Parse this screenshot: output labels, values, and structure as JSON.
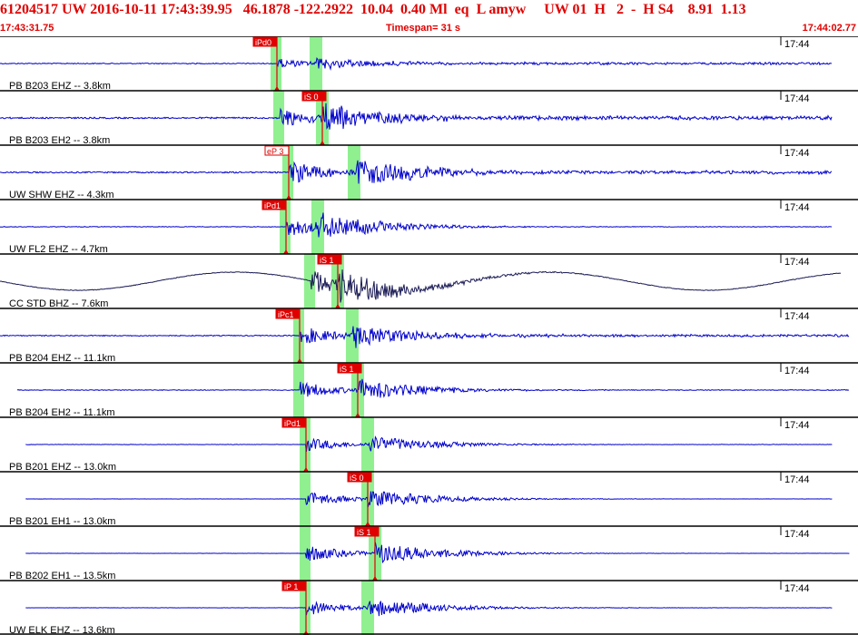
{
  "header": {
    "title_line": "61204517 UW 2016-10-11 17:43:39.95   46.1878 -122.2922  10.04  0.40 Ml  eq  L amyw     UW 01  H   2  -  H S4    8.91  1.13",
    "start_time": "17:43:31.75",
    "timespan": "Timespan=  31 s",
    "end_time": "17:44:02.77"
  },
  "colors": {
    "trace_blue": "#0000cc",
    "trace_dark": "#1a1a55",
    "pick_red": "#e00000",
    "header_red": "#e00000",
    "window_green": "#90f090",
    "panel_border": "#000000"
  },
  "traces": [
    {
      "label": "PB B203 EHZ -- 3.8km",
      "time_mark": "17:44",
      "pick": "iPd0",
      "pick2": "",
      "amp": 0.3,
      "noise": 0.35,
      "p": 0.16,
      "s": 0.18,
      "color": "blue",
      "start": 0.0,
      "end": 0.97
    },
    {
      "label": "PB B203 EH2 -- 3.8km",
      "time_mark": "17:44",
      "pick": "iS 0",
      "pick2": "",
      "amp": 0.7,
      "noise": 0.55,
      "p": 0.16,
      "s": 0.185,
      "color": "blue",
      "start": 0.0,
      "end": 0.97
    },
    {
      "label": "UW SHW EHZ -- 4.3km",
      "time_mark": "17:44",
      "pick": "eP 3",
      "pick2": "",
      "amp": 0.8,
      "noise": 0.5,
      "p": 0.195,
      "s": 0.21,
      "color": "blue",
      "start": 0.0,
      "end": 0.97
    },
    {
      "label": "UW FL2 EHZ -- 4.7km",
      "time_mark": "17:44",
      "pick": "iPd1",
      "pick2": "",
      "amp": 0.65,
      "noise": 0.2,
      "p": 0.165,
      "s": 0.205,
      "color": "blue",
      "start": 0.0,
      "end": 0.97
    },
    {
      "label": "CC STD BHZ -- 7.6km",
      "time_mark": "17:44",
      "pick": "iS 1",
      "pick2": "",
      "amp": 0.8,
      "noise": 0.25,
      "p": 0.175,
      "s": 0.195,
      "color": "dark",
      "start": 0.0,
      "end": 0.98
    },
    {
      "label": "PB B204 EHZ -- 11.1km",
      "time_mark": "17:44",
      "pick": "iPc1",
      "pick2": "",
      "amp": 0.6,
      "noise": 0.35,
      "p": 0.175,
      "s": 0.205,
      "color": "blue",
      "start": 0.0,
      "end": 0.99
    },
    {
      "label": "PB B204 EH2 -- 11.1km",
      "time_mark": "17:44",
      "pick": "iS 1",
      "pick2": "",
      "amp": 0.55,
      "noise": 0.25,
      "p": 0.175,
      "s": 0.208,
      "color": "blue",
      "start": 0.02,
      "end": 0.99
    },
    {
      "label": "PB B201 EHZ -- 13.0km",
      "time_mark": "17:44",
      "pick": "iPd1",
      "pick2": "",
      "amp": 0.45,
      "noise": 0.12,
      "p": 0.178,
      "s": 0.214,
      "color": "blue",
      "start": 0.03,
      "end": 0.97
    },
    {
      "label": "PB B201 EH1 -- 13.0km",
      "time_mark": "17:44",
      "pick": "iS 0",
      "pick2": "",
      "amp": 0.5,
      "noise": 0.05,
      "p": 0.178,
      "s": 0.214,
      "color": "blue",
      "start": 0.03,
      "end": 0.97
    },
    {
      "label": "PB B202 EH1 -- 13.5km",
      "time_mark": "17:44",
      "pick": "iS 1",
      "pick2": "",
      "amp": 0.55,
      "noise": 0.06,
      "p": 0.178,
      "s": 0.22,
      "color": "blue",
      "start": 0.03,
      "end": 0.99
    },
    {
      "label": "UW ELK EHZ -- 13.6km",
      "time_mark": "17:44",
      "pick": "iP 1",
      "pick2": "",
      "amp": 0.5,
      "noise": 0.08,
      "p": 0.178,
      "s": 0.215,
      "color": "blue",
      "start": 0.03,
      "end": 0.97
    }
  ]
}
